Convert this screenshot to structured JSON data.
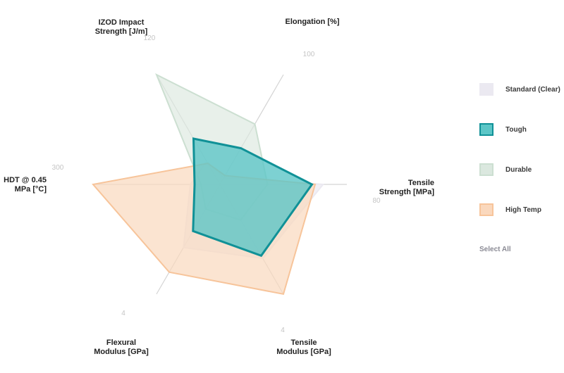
{
  "chart_data": {
    "type": "radar",
    "axes": [
      {
        "label": [
          "Elongation [%]"
        ],
        "max": 100,
        "tick": "100"
      },
      {
        "label": [
          "Tensile",
          "Strength [MPa]"
        ],
        "max": 80,
        "tick": "80"
      },
      {
        "label": [
          "Tensile",
          "Modulus [GPa]"
        ],
        "max": 4,
        "tick": "4"
      },
      {
        "label": [
          "Flexural",
          "Modulus [GPa]"
        ],
        "max": 4,
        "tick": "4"
      },
      {
        "label": [
          "HDT @ 0.45",
          "MPa [°C]"
        ],
        "max": 300,
        "tick": "300"
      },
      {
        "label": [
          "IZOD Impact",
          "Strength [J/m]"
        ],
        "max": 120,
        "tick": "120"
      }
    ],
    "grid": true,
    "legend_position": "right",
    "series": [
      {
        "name": "Standard (Clear)",
        "values": [
          6,
          65,
          2.7,
          2.3,
          70,
          25
        ],
        "fill": "#ebe9f1",
        "stroke": "#ebe9f1",
        "fill_opacity": 0.7,
        "stroke_width": 2
      },
      {
        "name": "Durable",
        "values": [
          55,
          30,
          1.3,
          0.9,
          45,
          120
        ],
        "fill": "#dbe8df",
        "stroke": "#ccdfd1",
        "fill_opacity": 0.65,
        "stroke_width": 2
      },
      {
        "name": "High Temp",
        "values": [
          8,
          60,
          4,
          3.2,
          300,
          23
        ],
        "fill": "#fad8bd",
        "stroke": "#f7c49a",
        "fill_opacity": 0.7,
        "stroke_width": 2
      },
      {
        "name": "Tough",
        "values": [
          33,
          58,
          2.6,
          1.7,
          60,
          50
        ],
        "fill": "#5cc6c7",
        "stroke": "#109197",
        "fill_opacity": 0.8,
        "stroke_width": 3
      }
    ],
    "legend_order": [
      "Standard (Clear)",
      "Tough",
      "Durable",
      "High Temp"
    ],
    "legend_action": "Select All"
  },
  "colors": {
    "axis": "#d4d4d4",
    "tick_text": "#c4c4c4",
    "label_text": "#222222",
    "legend_text": "#3a3a3a",
    "select_all_text": "#8a8a94"
  }
}
